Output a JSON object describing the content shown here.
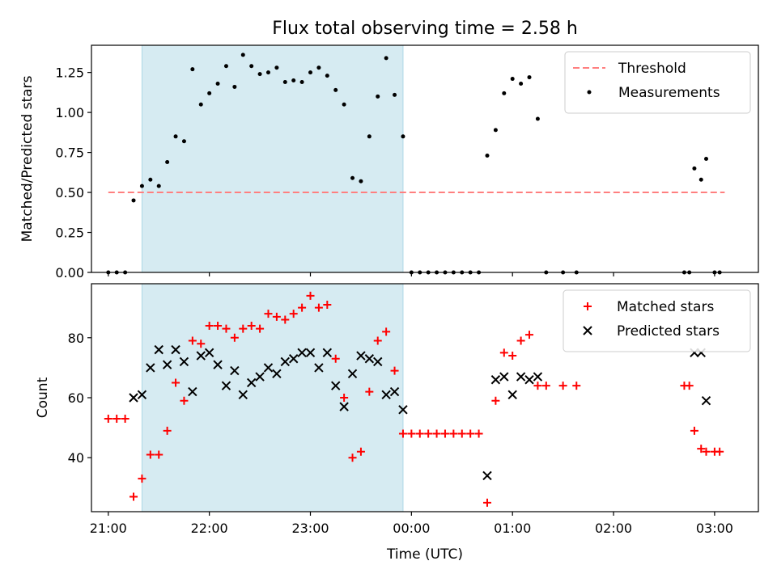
{
  "chart_data": [
    {
      "panel": "top",
      "type": "scatter",
      "title": "Flux total observing time = 2.58 h",
      "xlabel": "",
      "ylabel": "Matched/Predicted stars",
      "ylim": [
        0,
        1.42
      ],
      "xlim": [
        "20:50",
        "03:26"
      ],
      "yticks": [
        "0.00",
        "0.25",
        "0.50",
        "0.75",
        "1.00",
        "1.25"
      ],
      "ytick_values": [
        0,
        0.25,
        0.5,
        0.75,
        1.0,
        1.25
      ],
      "x_ticks": [
        "21:00",
        "22:00",
        "23:00",
        "00:00",
        "01:00",
        "02:00",
        "03:00"
      ],
      "x_tick_values": [
        0,
        60,
        120,
        180,
        240,
        300,
        360
      ],
      "x_unit": "minutes after 21:00 UTC",
      "legend_position": "top-right",
      "shaded_span": {
        "x_start": "21:20",
        "x_end": "23:55",
        "color": "#add8e6"
      },
      "threshold": {
        "name": "Threshold",
        "y": 0.5,
        "x_from": "21:00",
        "x_to": "03:06",
        "color": "#ff7f7f"
      },
      "series": [
        {
          "name": "Measurements",
          "color": "#000000",
          "x": [
            "21:00",
            "21:05",
            "21:10",
            "21:15",
            "21:20",
            "21:25",
            "21:30",
            "21:35",
            "21:40",
            "21:45",
            "21:50",
            "21:55",
            "22:00",
            "22:05",
            "22:10",
            "22:15",
            "22:20",
            "22:25",
            "22:30",
            "22:35",
            "22:40",
            "22:45",
            "22:50",
            "22:55",
            "23:00",
            "23:05",
            "23:10",
            "23:15",
            "23:20",
            "23:25",
            "23:30",
            "23:35",
            "23:40",
            "23:45",
            "23:50",
            "23:55",
            "00:00",
            "00:05",
            "00:10",
            "00:15",
            "00:20",
            "00:25",
            "00:30",
            "00:35",
            "00:40",
            "00:45",
            "00:50",
            "00:55",
            "01:00",
            "01:05",
            "01:10",
            "01:15",
            "01:20",
            "01:30",
            "01:38",
            "02:42",
            "02:45",
            "02:48",
            "02:52",
            "02:55",
            "03:00",
            "03:03"
          ],
          "y": [
            0,
            0,
            0,
            0.45,
            0.54,
            0.58,
            0.54,
            0.69,
            0.85,
            0.82,
            1.27,
            1.05,
            1.12,
            1.18,
            1.29,
            1.16,
            1.36,
            1.29,
            1.24,
            1.25,
            1.28,
            1.19,
            1.2,
            1.19,
            1.25,
            1.28,
            1.23,
            1.14,
            1.05,
            0.59,
            0.57,
            0.85,
            1.1,
            1.34,
            1.11,
            0.85,
            0,
            0,
            0,
            0,
            0,
            0,
            0,
            0,
            0,
            0.73,
            0.89,
            1.12,
            1.21,
            1.18,
            1.22,
            0.96,
            0,
            0,
            0,
            0,
            0,
            0.65,
            0.58,
            0.71,
            0,
            0
          ]
        }
      ]
    },
    {
      "panel": "bottom",
      "type": "scatter",
      "title": "",
      "xlabel": "Time (UTC)",
      "ylabel": "Count",
      "ylim": [
        22,
        98
      ],
      "xlim": [
        "20:50",
        "03:26"
      ],
      "yticks": [
        "40",
        "60",
        "80"
      ],
      "ytick_values": [
        40,
        60,
        80
      ],
      "x_ticks": [
        "21:00",
        "22:00",
        "23:00",
        "00:00",
        "01:00",
        "02:00",
        "03:00"
      ],
      "x_tick_values": [
        0,
        60,
        120,
        180,
        240,
        300,
        360
      ],
      "x_unit": "minutes after 21:00 UTC",
      "legend_position": "top-right",
      "shaded_span": {
        "x_start": "21:20",
        "x_end": "23:55",
        "color": "#add8e6"
      },
      "series": [
        {
          "name": "Matched stars",
          "marker": "+",
          "color": "#ff0000",
          "x": [
            "21:00",
            "21:05",
            "21:10",
            "21:15",
            "21:20",
            "21:25",
            "21:30",
            "21:35",
            "21:40",
            "21:45",
            "21:50",
            "21:55",
            "22:00",
            "22:05",
            "22:10",
            "22:15",
            "22:20",
            "22:25",
            "22:30",
            "22:35",
            "22:40",
            "22:45",
            "22:50",
            "22:55",
            "23:00",
            "23:05",
            "23:10",
            "23:15",
            "23:20",
            "23:25",
            "23:30",
            "23:35",
            "23:40",
            "23:45",
            "23:50",
            "23:55",
            "00:00",
            "00:05",
            "00:10",
            "00:15",
            "00:20",
            "00:25",
            "00:30",
            "00:35",
            "00:40",
            "00:45",
            "00:50",
            "00:55",
            "01:00",
            "01:05",
            "01:10",
            "01:15",
            "01:20",
            "01:30",
            "01:38",
            "02:42",
            "02:45",
            "02:48",
            "02:52",
            "02:55",
            "03:00",
            "03:03"
          ],
          "y": [
            53,
            53,
            53,
            27,
            33,
            41,
            41,
            49,
            65,
            59,
            79,
            78,
            84,
            84,
            83,
            80,
            83,
            84,
            83,
            88,
            87,
            86,
            88,
            90,
            94,
            90,
            91,
            73,
            60,
            40,
            42,
            62,
            79,
            82,
            69,
            48,
            48,
            48,
            48,
            48,
            48,
            48,
            48,
            48,
            48,
            25,
            59,
            75,
            74,
            79,
            81,
            64,
            64,
            64,
            64,
            64,
            64,
            49,
            43,
            42,
            42,
            42
          ]
        },
        {
          "name": "Predicted stars",
          "marker": "x",
          "color": "#000000",
          "x": [
            "21:15",
            "21:20",
            "21:25",
            "21:30",
            "21:35",
            "21:40",
            "21:45",
            "21:50",
            "21:55",
            "22:00",
            "22:05",
            "22:10",
            "22:15",
            "22:20",
            "22:25",
            "22:30",
            "22:35",
            "22:40",
            "22:45",
            "22:50",
            "22:55",
            "23:00",
            "23:05",
            "23:10",
            "23:15",
            "23:20",
            "23:25",
            "23:30",
            "23:35",
            "23:40",
            "23:45",
            "23:50",
            "23:55",
            "00:45",
            "00:50",
            "00:55",
            "01:00",
            "01:05",
            "01:10",
            "01:15",
            "02:48",
            "02:52",
            "02:55"
          ],
          "y": [
            60,
            61,
            70,
            76,
            71,
            76,
            72,
            62,
            74,
            75,
            71,
            64,
            69,
            61,
            65,
            67,
            70,
            68,
            72,
            73,
            75,
            75,
            70,
            75,
            64,
            57,
            68,
            74,
            73,
            72,
            61,
            62,
            56,
            34,
            66,
            67,
            61,
            67,
            66,
            67,
            75,
            75,
            59
          ]
        }
      ]
    }
  ]
}
